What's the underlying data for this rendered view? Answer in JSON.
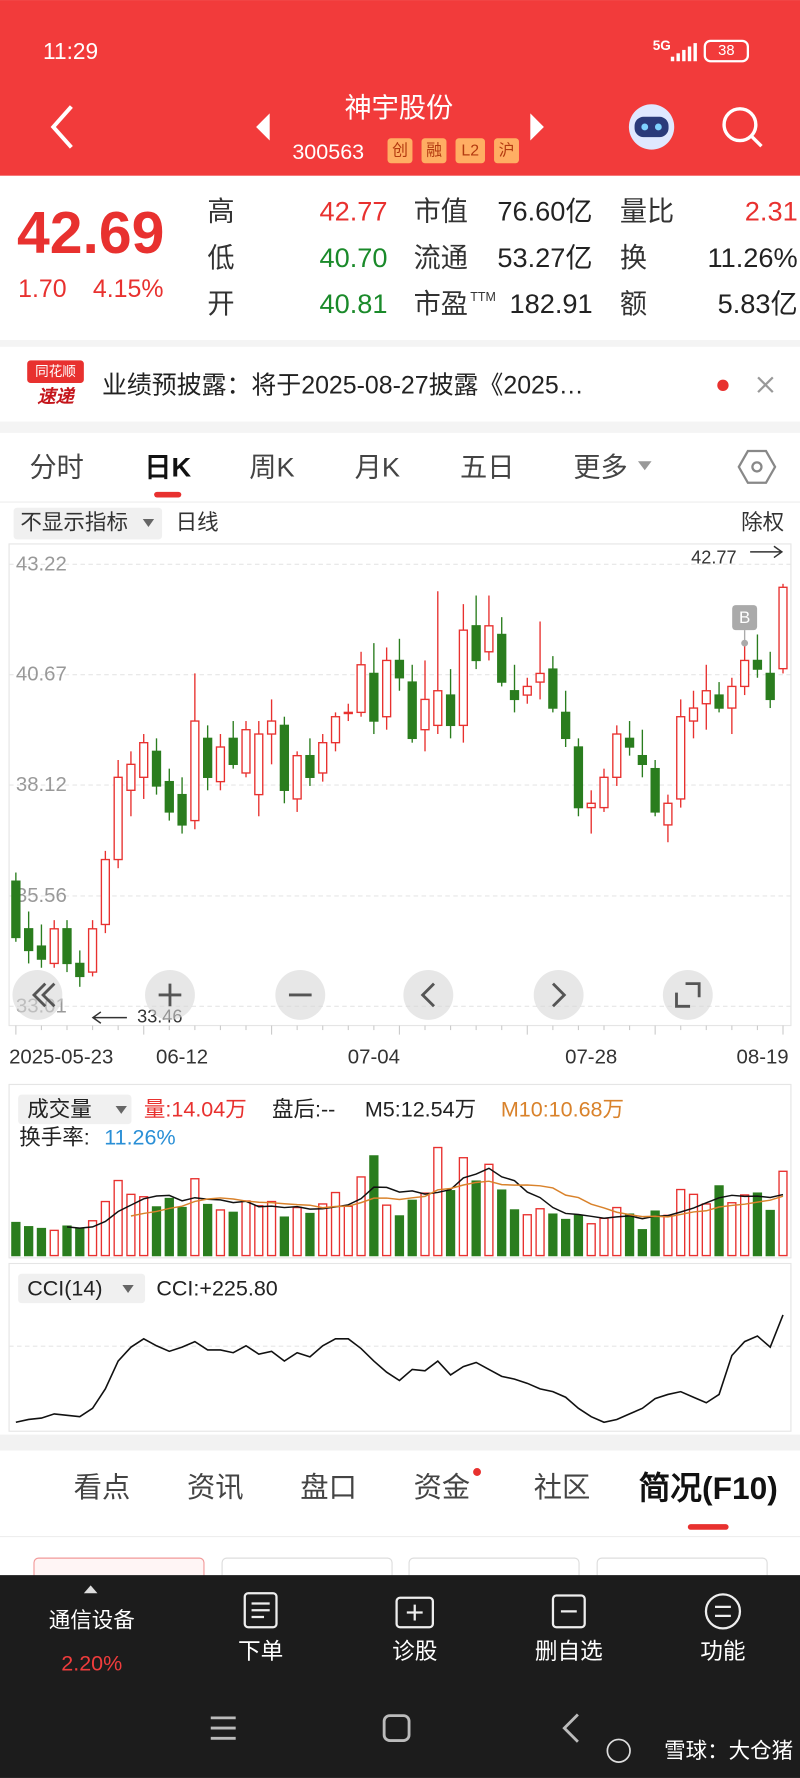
{
  "status_bar": {
    "time": "11:29",
    "network": "5G",
    "battery": "38"
  },
  "header": {
    "name": "神宇股份",
    "code": "300563",
    "tags": [
      "创",
      "融",
      "L2",
      "沪"
    ]
  },
  "quote": {
    "price": "42.69",
    "change": "1.70",
    "change_pct": "4.15%",
    "stats": [
      {
        "label": "高",
        "value": "42.77",
        "tone": "up"
      },
      {
        "label": "低",
        "value": "40.70",
        "tone": "down"
      },
      {
        "label": "开",
        "value": "40.81",
        "tone": "down"
      },
      {
        "label": "市值",
        "value": "76.60亿",
        "tone": "flat"
      },
      {
        "label": "流通",
        "value": "53.27亿",
        "tone": "flat"
      },
      {
        "label": "市盈",
        "sup": "TTM",
        "value": "182.91",
        "tone": "flat"
      },
      {
        "label": "量比",
        "value": "2.31",
        "tone": "up"
      },
      {
        "label": "换",
        "value": "11.26%",
        "tone": "flat"
      },
      {
        "label": "额",
        "value": "5.83亿",
        "tone": "flat"
      }
    ]
  },
  "notice": {
    "brand": [
      "同花顺",
      "速递"
    ],
    "text": "业绩预披露：将于2025-08-27披露《2025…"
  },
  "period_tabs": {
    "items": [
      "分时",
      "日K",
      "周K",
      "月K",
      "五日",
      "更多"
    ],
    "active": 1
  },
  "toolbar": {
    "indicator": "不显示指标",
    "period": "日线",
    "adjust": "除权"
  },
  "chart_data": {
    "type": "candlestick",
    "categories": [
      "2025-05-23",
      null,
      null,
      null,
      null,
      null,
      null,
      null,
      null,
      null,
      null,
      null,
      null,
      "06-12",
      null,
      null,
      null,
      null,
      null,
      null,
      null,
      null,
      null,
      null,
      null,
      null,
      null,
      null,
      "07-04",
      null,
      null,
      null,
      null,
      null,
      null,
      null,
      null,
      null,
      null,
      null,
      null,
      null,
      null,
      null,
      null,
      "07-28",
      null,
      null,
      null,
      null,
      null,
      null,
      null,
      null,
      null,
      null,
      null,
      null,
      null,
      null,
      null,
      "08-19"
    ],
    "candles": [
      [
        35.9,
        36.1,
        34.5,
        34.6
      ],
      [
        34.8,
        35.2,
        34.0,
        34.3
      ],
      [
        34.4,
        34.9,
        33.9,
        34.1
      ],
      [
        34.0,
        35.0,
        33.9,
        34.8
      ],
      [
        34.8,
        35.0,
        33.8,
        34.0
      ],
      [
        34.0,
        34.3,
        33.46,
        33.7
      ],
      [
        33.8,
        35.0,
        33.7,
        34.8
      ],
      [
        34.9,
        36.6,
        34.7,
        36.4
      ],
      [
        36.4,
        38.7,
        36.2,
        38.3
      ],
      [
        38.0,
        38.9,
        37.4,
        38.6
      ],
      [
        38.3,
        39.3,
        37.8,
        39.1
      ],
      [
        38.9,
        39.2,
        37.9,
        38.1
      ],
      [
        38.2,
        38.5,
        37.3,
        37.5
      ],
      [
        37.9,
        38.3,
        37.0,
        37.2
      ],
      [
        37.3,
        40.7,
        37.1,
        39.6
      ],
      [
        39.2,
        39.5,
        38.0,
        38.3
      ],
      [
        38.2,
        39.3,
        38.0,
        39.0
      ],
      [
        39.2,
        39.6,
        38.5,
        38.6
      ],
      [
        38.4,
        39.6,
        38.3,
        39.4
      ],
      [
        37.9,
        39.6,
        37.4,
        39.3
      ],
      [
        39.3,
        40.1,
        38.6,
        39.6
      ],
      [
        39.5,
        39.7,
        37.7,
        38.0
      ],
      [
        37.8,
        38.9,
        37.5,
        38.8
      ],
      [
        38.8,
        39.2,
        38.1,
        38.3
      ],
      [
        38.4,
        39.3,
        38.2,
        39.1
      ],
      [
        39.1,
        39.8,
        38.9,
        39.7
      ],
      [
        39.8,
        40.0,
        39.6,
        39.8
      ],
      [
        39.8,
        41.2,
        39.7,
        40.9
      ],
      [
        40.7,
        41.4,
        39.3,
        39.6
      ],
      [
        39.7,
        41.3,
        39.4,
        41.0
      ],
      [
        41.0,
        41.5,
        40.3,
        40.6
      ],
      [
        40.5,
        40.9,
        39.1,
        39.2
      ],
      [
        39.4,
        41.0,
        38.9,
        40.1
      ],
      [
        39.5,
        42.6,
        39.3,
        40.3
      ],
      [
        40.2,
        40.8,
        39.2,
        39.5
      ],
      [
        39.5,
        42.3,
        39.1,
        41.7
      ],
      [
        41.8,
        42.5,
        40.8,
        41.0
      ],
      [
        41.2,
        42.5,
        41.0,
        41.8
      ],
      [
        41.6,
        42.0,
        40.4,
        40.5
      ],
      [
        40.3,
        40.9,
        39.8,
        40.1
      ],
      [
        40.2,
        40.6,
        40.0,
        40.4
      ],
      [
        40.5,
        41.9,
        40.1,
        40.7
      ],
      [
        40.8,
        41.1,
        39.8,
        39.9
      ],
      [
        39.8,
        40.3,
        39.0,
        39.2
      ],
      [
        39.0,
        39.2,
        37.4,
        37.6
      ],
      [
        37.6,
        38.0,
        37.0,
        37.7
      ],
      [
        37.6,
        38.5,
        37.5,
        38.3
      ],
      [
        38.3,
        39.5,
        38.1,
        39.3
      ],
      [
        39.2,
        39.6,
        38.8,
        39.0
      ],
      [
        38.8,
        39.4,
        38.3,
        38.6
      ],
      [
        38.5,
        38.7,
        37.4,
        37.5
      ],
      [
        37.2,
        37.9,
        36.8,
        37.7
      ],
      [
        37.8,
        40.1,
        37.6,
        39.7
      ],
      [
        39.6,
        40.3,
        39.2,
        39.9
      ],
      [
        40.0,
        40.9,
        39.4,
        40.3
      ],
      [
        40.2,
        40.5,
        39.8,
        39.9
      ],
      [
        39.9,
        40.6,
        39.3,
        40.4
      ],
      [
        40.4,
        41.4,
        40.2,
        41.0
      ],
      [
        41.0,
        41.6,
        40.6,
        40.8
      ],
      [
        40.7,
        41.2,
        39.9,
        40.1
      ],
      [
        40.81,
        42.77,
        40.7,
        42.69
      ]
    ],
    "ylim": [
      33.01,
      43.22
    ],
    "yticks": [
      43.22,
      40.67,
      38.12,
      35.56,
      33.01
    ],
    "grid": true,
    "up_color": "#e8312f",
    "down_color": "#2a7d1e",
    "annotations": [
      {
        "label": "B",
        "index": 57
      }
    ],
    "volume_panel": {
      "title": "成交量",
      "latest": "量:14.04万",
      "after_hours": "盘后:--",
      "m5": "M5:12.54万",
      "m10": "M10:10.68万",
      "turnover_label": "换手率:",
      "turnover_value": "11.26%",
      "values": [
        5.5,
        4.8,
        4.5,
        4.2,
        4.9,
        4.5,
        5.8,
        9.0,
        12.5,
        10.2,
        9.8,
        8.1,
        9.5,
        8.0,
        12.8,
        8.5,
        7.6,
        7.2,
        9.1,
        8.3,
        9.0,
        6.4,
        8.0,
        7.0,
        8.6,
        10.5,
        8.2,
        13.1,
        16.6,
        8.4,
        6.6,
        9.2,
        10.4,
        18.0,
        10.8,
        16.3,
        12.4,
        15.2,
        10.9,
        7.6,
        6.8,
        7.8,
        6.9,
        6.0,
        6.7,
        5.3,
        6.2,
        8.0,
        6.9,
        4.3,
        7.4,
        6.7,
        11.0,
        10.2,
        8.6,
        11.6,
        8.8,
        10.1,
        10.4,
        7.5,
        14.04
      ],
      "ylim": [
        0,
        18.5
      ]
    },
    "cci_panel": {
      "title": "CCI(14)",
      "latest": "CCI:+225.80",
      "values": [
        -160,
        -150,
        -145,
        -130,
        -135,
        -140,
        -110,
        -40,
        60,
        110,
        140,
        115,
        95,
        110,
        130,
        100,
        100,
        90,
        115,
        85,
        95,
        60,
        90,
        75,
        115,
        140,
        140,
        105,
        60,
        20,
        -10,
        30,
        25,
        60,
        10,
        40,
        55,
        30,
        5,
        -5,
        -20,
        -40,
        -50,
        -70,
        -110,
        -140,
        -160,
        -150,
        -130,
        -110,
        -75,
        -60,
        -50,
        -70,
        -90,
        -60,
        80,
        130,
        150,
        110,
        225.8
      ],
      "ylim": [
        -180,
        260
      ]
    }
  },
  "info_tabs": {
    "items": [
      "看点",
      "资讯",
      "盘口",
      "资金",
      "社区",
      "简况(F10)"
    ],
    "active": 5
  },
  "bottom_nav": {
    "sector": "通信设备",
    "sector_change": "2.20%",
    "items": [
      "下单",
      "诊股",
      "删自选",
      "功能"
    ]
  },
  "watermark": "雪球：大仓猪"
}
